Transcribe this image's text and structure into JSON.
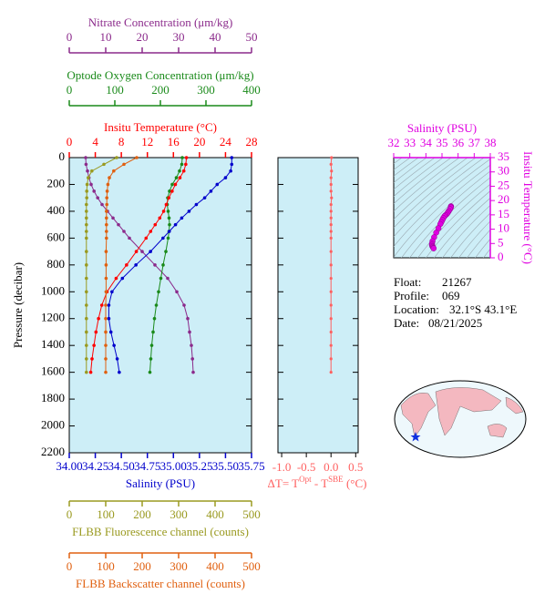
{
  "chart_data": [
    {
      "type": "line",
      "ylabel": "Pressure (decibar)",
      "ylim": [
        0,
        2200
      ],
      "yticks": [
        0,
        200,
        400,
        600,
        800,
        1000,
        1200,
        1400,
        1600,
        1800,
        2000,
        2200
      ],
      "pressure": [
        0,
        50,
        100,
        150,
        200,
        250,
        300,
        350,
        400,
        450,
        500,
        550,
        600,
        700,
        800,
        900,
        1000,
        1100,
        1200,
        1300,
        1400,
        1500,
        1600
      ],
      "background": "#cdeef7",
      "axes": [
        {
          "label": "Nitrate Concentration (μm/kg)",
          "color": "#8b2a8b",
          "xlim": [
            0,
            50
          ],
          "xticks": [
            0,
            10,
            20,
            30,
            40,
            50
          ],
          "values": [
            4.5,
            4.6,
            5,
            5.4,
            6,
            6.8,
            7.8,
            9,
            10.5,
            12,
            13.5,
            15,
            16.5,
            20,
            23.5,
            27,
            29.5,
            31.5,
            32.5,
            33,
            33.5,
            33.8,
            34
          ]
        },
        {
          "label": "Optode Oxygen Concentration (μm/kg)",
          "color": "#1a8a1a",
          "xlim": [
            0,
            400
          ],
          "xticks": [
            0,
            100,
            200,
            300,
            400
          ],
          "values": [
            248,
            247,
            242,
            235,
            226,
            220,
            216,
            215,
            217,
            219,
            220,
            219,
            217,
            212,
            206,
            201,
            196,
            191,
            187,
            184,
            181,
            179,
            177
          ]
        },
        {
          "label": "Insitu Temperature (°C)",
          "color": "#ff0000",
          "xlim": [
            0,
            28
          ],
          "xticks": [
            0,
            4,
            8,
            12,
            16,
            20,
            24,
            28
          ],
          "values": [
            18.0,
            17.9,
            17.6,
            17.0,
            16.3,
            15.8,
            15.3,
            14.9,
            14.5,
            13.9,
            13.2,
            12.5,
            11.8,
            10.3,
            8.8,
            7.2,
            5.8,
            5.0,
            4.5,
            4.1,
            3.8,
            3.5,
            3.3
          ]
        },
        {
          "label": "Salinity (PSU)",
          "color": "#0000cc",
          "xlim": [
            34.0,
            35.75
          ],
          "xticks": [
            {
              "value": 34.0,
              "label": "34.00"
            },
            {
              "value": 34.25,
              "label": "34.25"
            },
            {
              "value": 34.5,
              "label": "34.50"
            },
            {
              "value": 34.75,
              "label": "34.75"
            },
            {
              "value": 35.0,
              "label": "35.00"
            },
            {
              "value": 35.25,
              "label": "35.25"
            },
            {
              "value": 35.5,
              "label": "35.50"
            },
            {
              "value": 35.75,
              "label": "35.75"
            }
          ],
          "values": [
            35.56,
            35.56,
            35.55,
            35.5,
            35.42,
            35.36,
            35.3,
            35.22,
            35.15,
            35.08,
            35.02,
            34.96,
            34.9,
            34.78,
            34.64,
            34.51,
            34.41,
            34.38,
            34.38,
            34.4,
            34.43,
            34.46,
            34.48
          ]
        },
        {
          "label": "FLBB Fluorescence channel (counts)",
          "color": "#9a9a20",
          "xlim": [
            0,
            500
          ],
          "xticks": [
            0,
            100,
            200,
            300,
            400,
            500
          ],
          "values": [
            130,
            95,
            62,
            52,
            49,
            48,
            48,
            47,
            47,
            47,
            47,
            47,
            47,
            47,
            47,
            47,
            47,
            47,
            47,
            47,
            47,
            47,
            47
          ]
        },
        {
          "label": "FLBB Backscatter channel (counts)",
          "color": "#e06010",
          "xlim": [
            0,
            500
          ],
          "xticks": [
            0,
            100,
            200,
            300,
            400,
            500
          ],
          "values": [
            185,
            150,
            122,
            110,
            106,
            104,
            103,
            103,
            102,
            102,
            102,
            102,
            102,
            101,
            101,
            101,
            101,
            100,
            100,
            100,
            100,
            100,
            100
          ]
        }
      ]
    },
    {
      "type": "line",
      "color": "#ff6060",
      "xlabel_parts": [
        "ΔT= T",
        "Opt",
        " - T",
        "SBE",
        " (°C)"
      ],
      "xlim": [
        -1.075,
        0.55
      ],
      "xticks": [
        {
          "value": -1.0,
          "label": "-1.0"
        },
        {
          "value": -0.5,
          "label": "-0.5"
        },
        {
          "value": 0.0,
          "label": "0.0"
        },
        0.5
      ],
      "values": [
        0.01,
        0.0,
        0.01,
        0.0,
        0.0,
        0.0,
        0.01,
        0.0,
        0.0,
        0.0,
        0.0,
        0.0,
        0.0,
        0.0,
        0.0,
        0.0,
        0.0,
        0.0,
        0.0,
        0.0,
        0.0,
        0.0,
        0.0
      ]
    },
    {
      "type": "scatter",
      "title": "Salinity (PSU)",
      "ylabel": "Insitu Temperature (°C)",
      "color": "#e000e0",
      "xlim": [
        32,
        38
      ],
      "xticks": [
        32,
        33,
        34,
        35,
        36,
        37,
        38
      ],
      "ylim": [
        0,
        35
      ],
      "yticks": [
        0,
        5,
        10,
        15,
        20,
        25,
        30,
        35
      ]
    }
  ],
  "float_info": [
    {
      "label": "Float:",
      "value": "21267"
    },
    {
      "label": "Profile:",
      "value": "069"
    },
    {
      "label": "Location:",
      "value": "32.1°S  43.1°E"
    },
    {
      "label": "Date:",
      "value": "08/21/2025"
    }
  ]
}
